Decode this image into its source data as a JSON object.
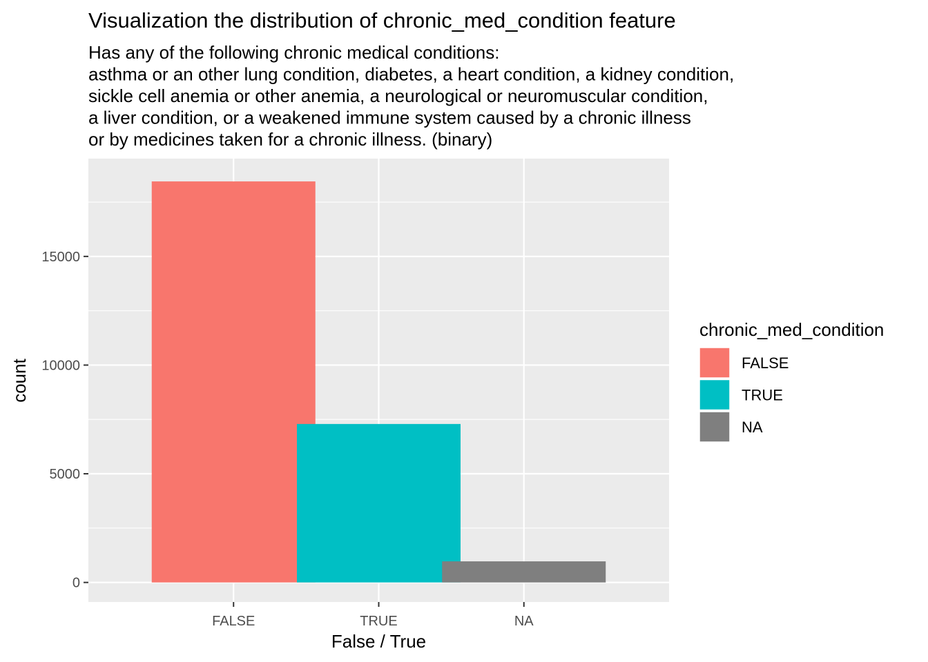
{
  "chart_data": {
    "type": "bar",
    "title": "Visualization the distribution of chronic_med_condition feature",
    "subtitle": [
      "Has any of the following chronic medical conditions:",
      "asthma or an other lung condition, diabetes, a heart condition, a kidney condition,",
      "sickle cell anemia or other anemia, a neurological or neuromuscular condition,",
      "a liver condition, or a weakened immune system caused by a chronic illness",
      "or by medicines taken for a chronic illness. (binary)"
    ],
    "xlabel": "False / True",
    "ylabel": "count",
    "categories": [
      "FALSE",
      "TRUE",
      "NA"
    ],
    "values": [
      18450,
      7290,
      970
    ],
    "colors": [
      "#F8766D",
      "#00BFC4",
      "#7F7F7F"
    ],
    "ylim": [
      -900,
      19500
    ],
    "yticks": [
      0,
      5000,
      10000,
      15000
    ],
    "grid": true,
    "panel_background": "#EBEBEB",
    "legend": {
      "title": "chronic_med_condition",
      "position": "right",
      "entries": [
        "FALSE",
        "TRUE",
        "NA"
      ]
    }
  }
}
